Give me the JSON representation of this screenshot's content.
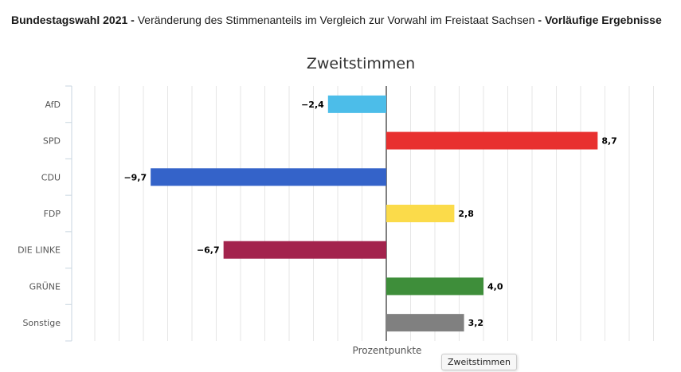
{
  "header": {
    "part1": "Bundestagswahl 2021 - ",
    "part2": "Veränderung des Stimmenanteils im Vergleich zur Vorwahl im Freistaat Sachsen",
    "part3": " - Vorläufige Ergebnisse"
  },
  "tooltip": {
    "label": "Zweitstimmen"
  },
  "chart_data": {
    "type": "bar",
    "orientation": "horizontal",
    "title": "Zweitstimmen",
    "xlabel": "Prozentpunkte",
    "ylabel": "",
    "categories": [
      "AfD",
      "SPD",
      "CDU",
      "FDP",
      "DIE LINKE",
      "GRÜNE",
      "Sonstige"
    ],
    "values": [
      -2.4,
      8.7,
      -9.7,
      2.8,
      -6.7,
      4.0,
      3.2
    ],
    "value_labels": [
      "−2,4",
      "8,7",
      "−9,7",
      "2,8",
      "−6,7",
      "4,0",
      "3,2"
    ],
    "colors": [
      "#4cbde9",
      "#e8302f",
      "#3463c9",
      "#fbdb4a",
      "#a3234d",
      "#3e8e3a",
      "#808080"
    ],
    "xlim": [
      -12,
      12
    ],
    "grid": true,
    "legend": "none",
    "series": [
      {
        "name": "Zweitstimmen"
      }
    ]
  }
}
